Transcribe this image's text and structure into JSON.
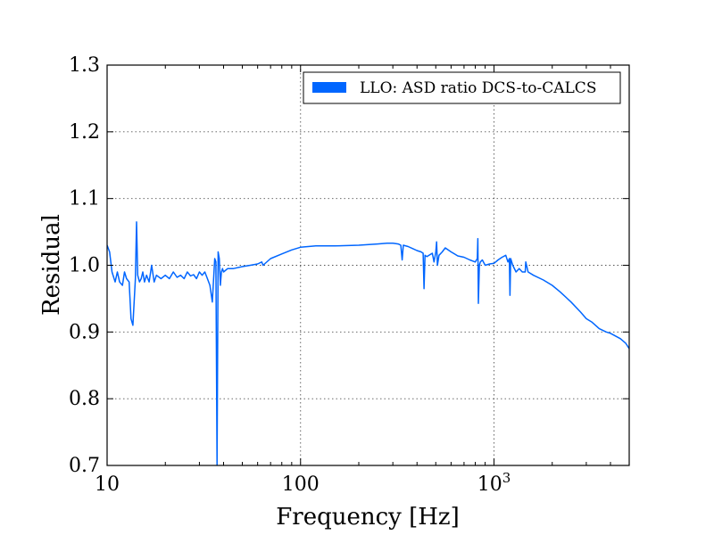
{
  "chart_data": {
    "type": "line",
    "title": "",
    "xlabel": "Frequency [Hz]",
    "ylabel": "Residual",
    "xscale": "log",
    "xlim": [
      10,
      5000
    ],
    "ylim": [
      0.7,
      1.3
    ],
    "grid": true,
    "legend": {
      "placement": "top-right"
    },
    "x_ticks": [
      {
        "value": 10,
        "label": "10"
      },
      {
        "value": 100,
        "label": "100"
      },
      {
        "value": 1000,
        "label": "10",
        "sup": "3"
      }
    ],
    "y_ticks": [
      {
        "value": 0.7,
        "label": "0.7"
      },
      {
        "value": 0.8,
        "label": "0.8"
      },
      {
        "value": 0.9,
        "label": "0.9"
      },
      {
        "value": 1.0,
        "label": "1.0"
      },
      {
        "value": 1.1,
        "label": "1.1"
      },
      {
        "value": 1.2,
        "label": "1.2"
      },
      {
        "value": 1.3,
        "label": "1.3"
      }
    ],
    "series": [
      {
        "name": "LLO: ASD ratio DCS-to-CALCS",
        "color": "#0066ff",
        "x": [
          10,
          10.3,
          10.6,
          11,
          11.3,
          11.6,
          12,
          12.3,
          12.6,
          13,
          13.3,
          13.6,
          14,
          14.2,
          14.4,
          14.7,
          15,
          15.3,
          15.6,
          16,
          16.5,
          17,
          17.5,
          18,
          19,
          20,
          21,
          22,
          23,
          24,
          25,
          26,
          27,
          28,
          29,
          30,
          31,
          32,
          33,
          34,
          35,
          36,
          36.5,
          37,
          37.5,
          38,
          38.5,
          39,
          39.5,
          40,
          42,
          45,
          50,
          55,
          60,
          63,
          64,
          70,
          80,
          90,
          100,
          120,
          150,
          200,
          250,
          280,
          300,
          320,
          330,
          335,
          340,
          360,
          380,
          400,
          420,
          430,
          435,
          440,
          450,
          480,
          490,
          500,
          505,
          510,
          520,
          540,
          560,
          600,
          650,
          700,
          750,
          800,
          820,
          825,
          830,
          840,
          850,
          870,
          900,
          950,
          1000,
          1050,
          1100,
          1150,
          1180,
          1200,
          1210,
          1220,
          1250,
          1300,
          1350,
          1400,
          1450,
          1460,
          1500,
          1600,
          1800,
          2000,
          2200,
          2500,
          2800,
          3000,
          3200,
          3500,
          3800,
          4000,
          4500,
          4800,
          5000
        ],
        "y": [
          1.03,
          1.02,
          0.99,
          0.975,
          0.99,
          0.975,
          0.97,
          0.99,
          0.98,
          0.975,
          0.92,
          0.91,
          0.98,
          1.065,
          0.985,
          0.975,
          0.98,
          0.99,
          0.975,
          0.985,
          0.975,
          1.0,
          0.975,
          0.985,
          0.98,
          0.985,
          0.98,
          0.99,
          0.982,
          0.985,
          0.98,
          0.99,
          0.984,
          0.986,
          0.98,
          0.99,
          0.985,
          0.99,
          0.98,
          0.97,
          0.945,
          1.01,
          1.005,
          0.7,
          1.02,
          1.01,
          0.97,
          0.99,
          0.995,
          0.99,
          0.995,
          0.995,
          0.998,
          1.0,
          1.002,
          1.005,
          1.0,
          1.01,
          1.017,
          1.023,
          1.027,
          1.029,
          1.029,
          1.03,
          1.032,
          1.033,
          1.033,
          1.032,
          1.03,
          1.008,
          1.03,
          1.028,
          1.025,
          1.022,
          1.02,
          1.018,
          0.965,
          1.015,
          1.013,
          1.018,
          1.005,
          1.02,
          1.035,
          1.0,
          1.015,
          1.02,
          1.026,
          1.02,
          1.014,
          1.012,
          1.008,
          1.005,
          1.01,
          1.04,
          0.943,
          1.0,
          1.005,
          1.008,
          1.0,
          1.002,
          1.003,
          1.008,
          1.012,
          1.015,
          1.005,
          1.01,
          0.955,
          1.01,
          1.0,
          0.99,
          0.995,
          0.99,
          0.99,
          1.005,
          0.99,
          0.985,
          0.978,
          0.97,
          0.96,
          0.945,
          0.93,
          0.92,
          0.915,
          0.905,
          0.9,
          0.898,
          0.89,
          0.883,
          0.875
        ]
      }
    ]
  }
}
